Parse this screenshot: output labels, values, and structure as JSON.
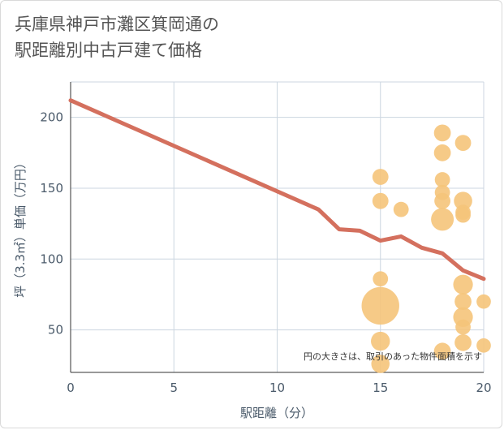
{
  "chart_data": {
    "type": "scatter",
    "title_lines": [
      "兵庫県神戸市灘区箕岡通の",
      "駅距離別中古戸建て価格"
    ],
    "xlabel": "駅距離（分）",
    "ylabel": "坪（3.3㎡）単価（万円）",
    "note": "円の大きさは、取引のあった物件面積を示す",
    "xlim": [
      0,
      20
    ],
    "ylim": [
      20,
      225
    ],
    "x_ticks": [
      0,
      5,
      10,
      15,
      20
    ],
    "y_ticks": [
      50,
      100,
      150,
      200
    ],
    "grid": true,
    "colors": {
      "line": "#d4705e",
      "bubble": "#f5c47a",
      "grid": "#ccd6e0",
      "axis": "#333333"
    },
    "trend_line": [
      {
        "x": 0,
        "y": 212
      },
      {
        "x": 12,
        "y": 135
      },
      {
        "x": 13,
        "y": 121
      },
      {
        "x": 14,
        "y": 120
      },
      {
        "x": 15,
        "y": 113
      },
      {
        "x": 16,
        "y": 116
      },
      {
        "x": 17,
        "y": 108
      },
      {
        "x": 18,
        "y": 104
      },
      {
        "x": 19,
        "y": 92
      },
      {
        "x": 20,
        "y": 86
      }
    ],
    "points": [
      {
        "x": 15,
        "y": 158,
        "size": 1.0
      },
      {
        "x": 15,
        "y": 141,
        "size": 1.0
      },
      {
        "x": 15,
        "y": 86,
        "size": 0.9
      },
      {
        "x": 15,
        "y": 67,
        "size": 5.5
      },
      {
        "x": 15,
        "y": 42,
        "size": 1.4
      },
      {
        "x": 15,
        "y": 26,
        "size": 1.3
      },
      {
        "x": 16,
        "y": 135,
        "size": 0.9
      },
      {
        "x": 18,
        "y": 189,
        "size": 1.1
      },
      {
        "x": 18,
        "y": 175,
        "size": 1.1
      },
      {
        "x": 18,
        "y": 156,
        "size": 0.9
      },
      {
        "x": 18,
        "y": 147,
        "size": 0.9
      },
      {
        "x": 18,
        "y": 141,
        "size": 1.0
      },
      {
        "x": 18,
        "y": 128,
        "size": 2.0
      },
      {
        "x": 18,
        "y": 35,
        "size": 1.1
      },
      {
        "x": 19,
        "y": 182,
        "size": 1.0
      },
      {
        "x": 19,
        "y": 141,
        "size": 1.3
      },
      {
        "x": 19,
        "y": 133,
        "size": 0.9
      },
      {
        "x": 19,
        "y": 131,
        "size": 0.9
      },
      {
        "x": 19,
        "y": 82,
        "size": 1.5
      },
      {
        "x": 19,
        "y": 70,
        "size": 1.1
      },
      {
        "x": 19,
        "y": 59,
        "size": 1.5
      },
      {
        "x": 19,
        "y": 52,
        "size": 0.9
      },
      {
        "x": 19,
        "y": 41,
        "size": 1.1
      },
      {
        "x": 20,
        "y": 70,
        "size": 0.8
      },
      {
        "x": 20,
        "y": 39,
        "size": 0.8
      }
    ]
  }
}
